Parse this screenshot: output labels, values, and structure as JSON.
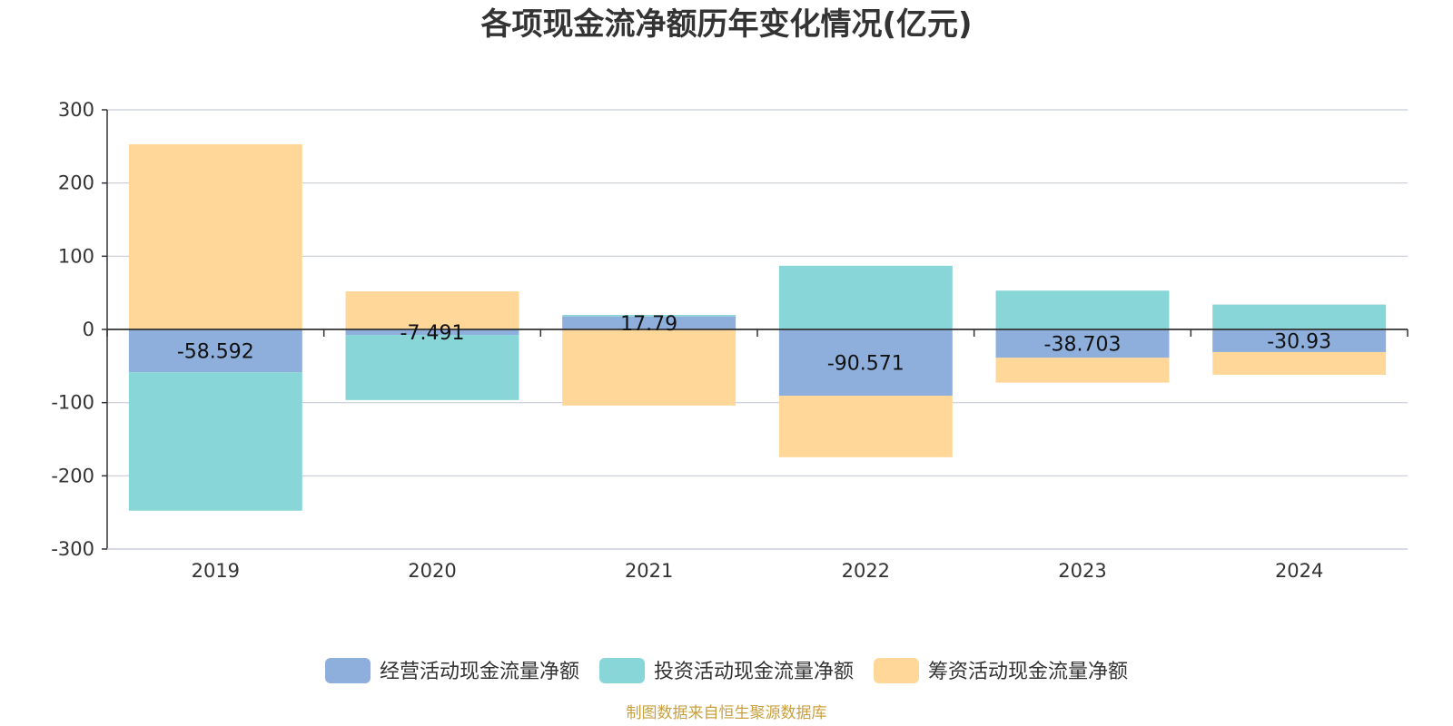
{
  "chart_data": {
    "type": "bar",
    "stacked": true,
    "title": "各项现金流净额历年变化情况(亿元)",
    "categories": [
      "2019",
      "2020",
      "2021",
      "2022",
      "2023",
      "2024"
    ],
    "ylim": [
      -300,
      300
    ],
    "yticks": [
      300,
      200,
      100,
      0,
      -100,
      -200,
      -300
    ],
    "grid": true,
    "legend_position": "bottom",
    "series": [
      {
        "name": "经营活动现金流量净额",
        "color": "#8EAFDC",
        "values": [
          -58.592,
          -7.491,
          17.79,
          -90.571,
          -38.703,
          -30.93
        ],
        "labels": [
          "-58.592",
          "-7.491",
          "17.79",
          "-90.571",
          "-38.703",
          "-30.93"
        ]
      },
      {
        "name": "投资活动现金流量净额",
        "color": "#88D6D8",
        "values": [
          -189,
          -89,
          2,
          87,
          53,
          34
        ]
      },
      {
        "name": "筹资活动现金流量净额",
        "color": "#FFD899",
        "values": [
          253,
          52,
          -104,
          -84,
          -34,
          -31
        ]
      }
    ],
    "source": "制图数据来自恒生聚源数据库",
    "source_color": "#C8A040"
  }
}
